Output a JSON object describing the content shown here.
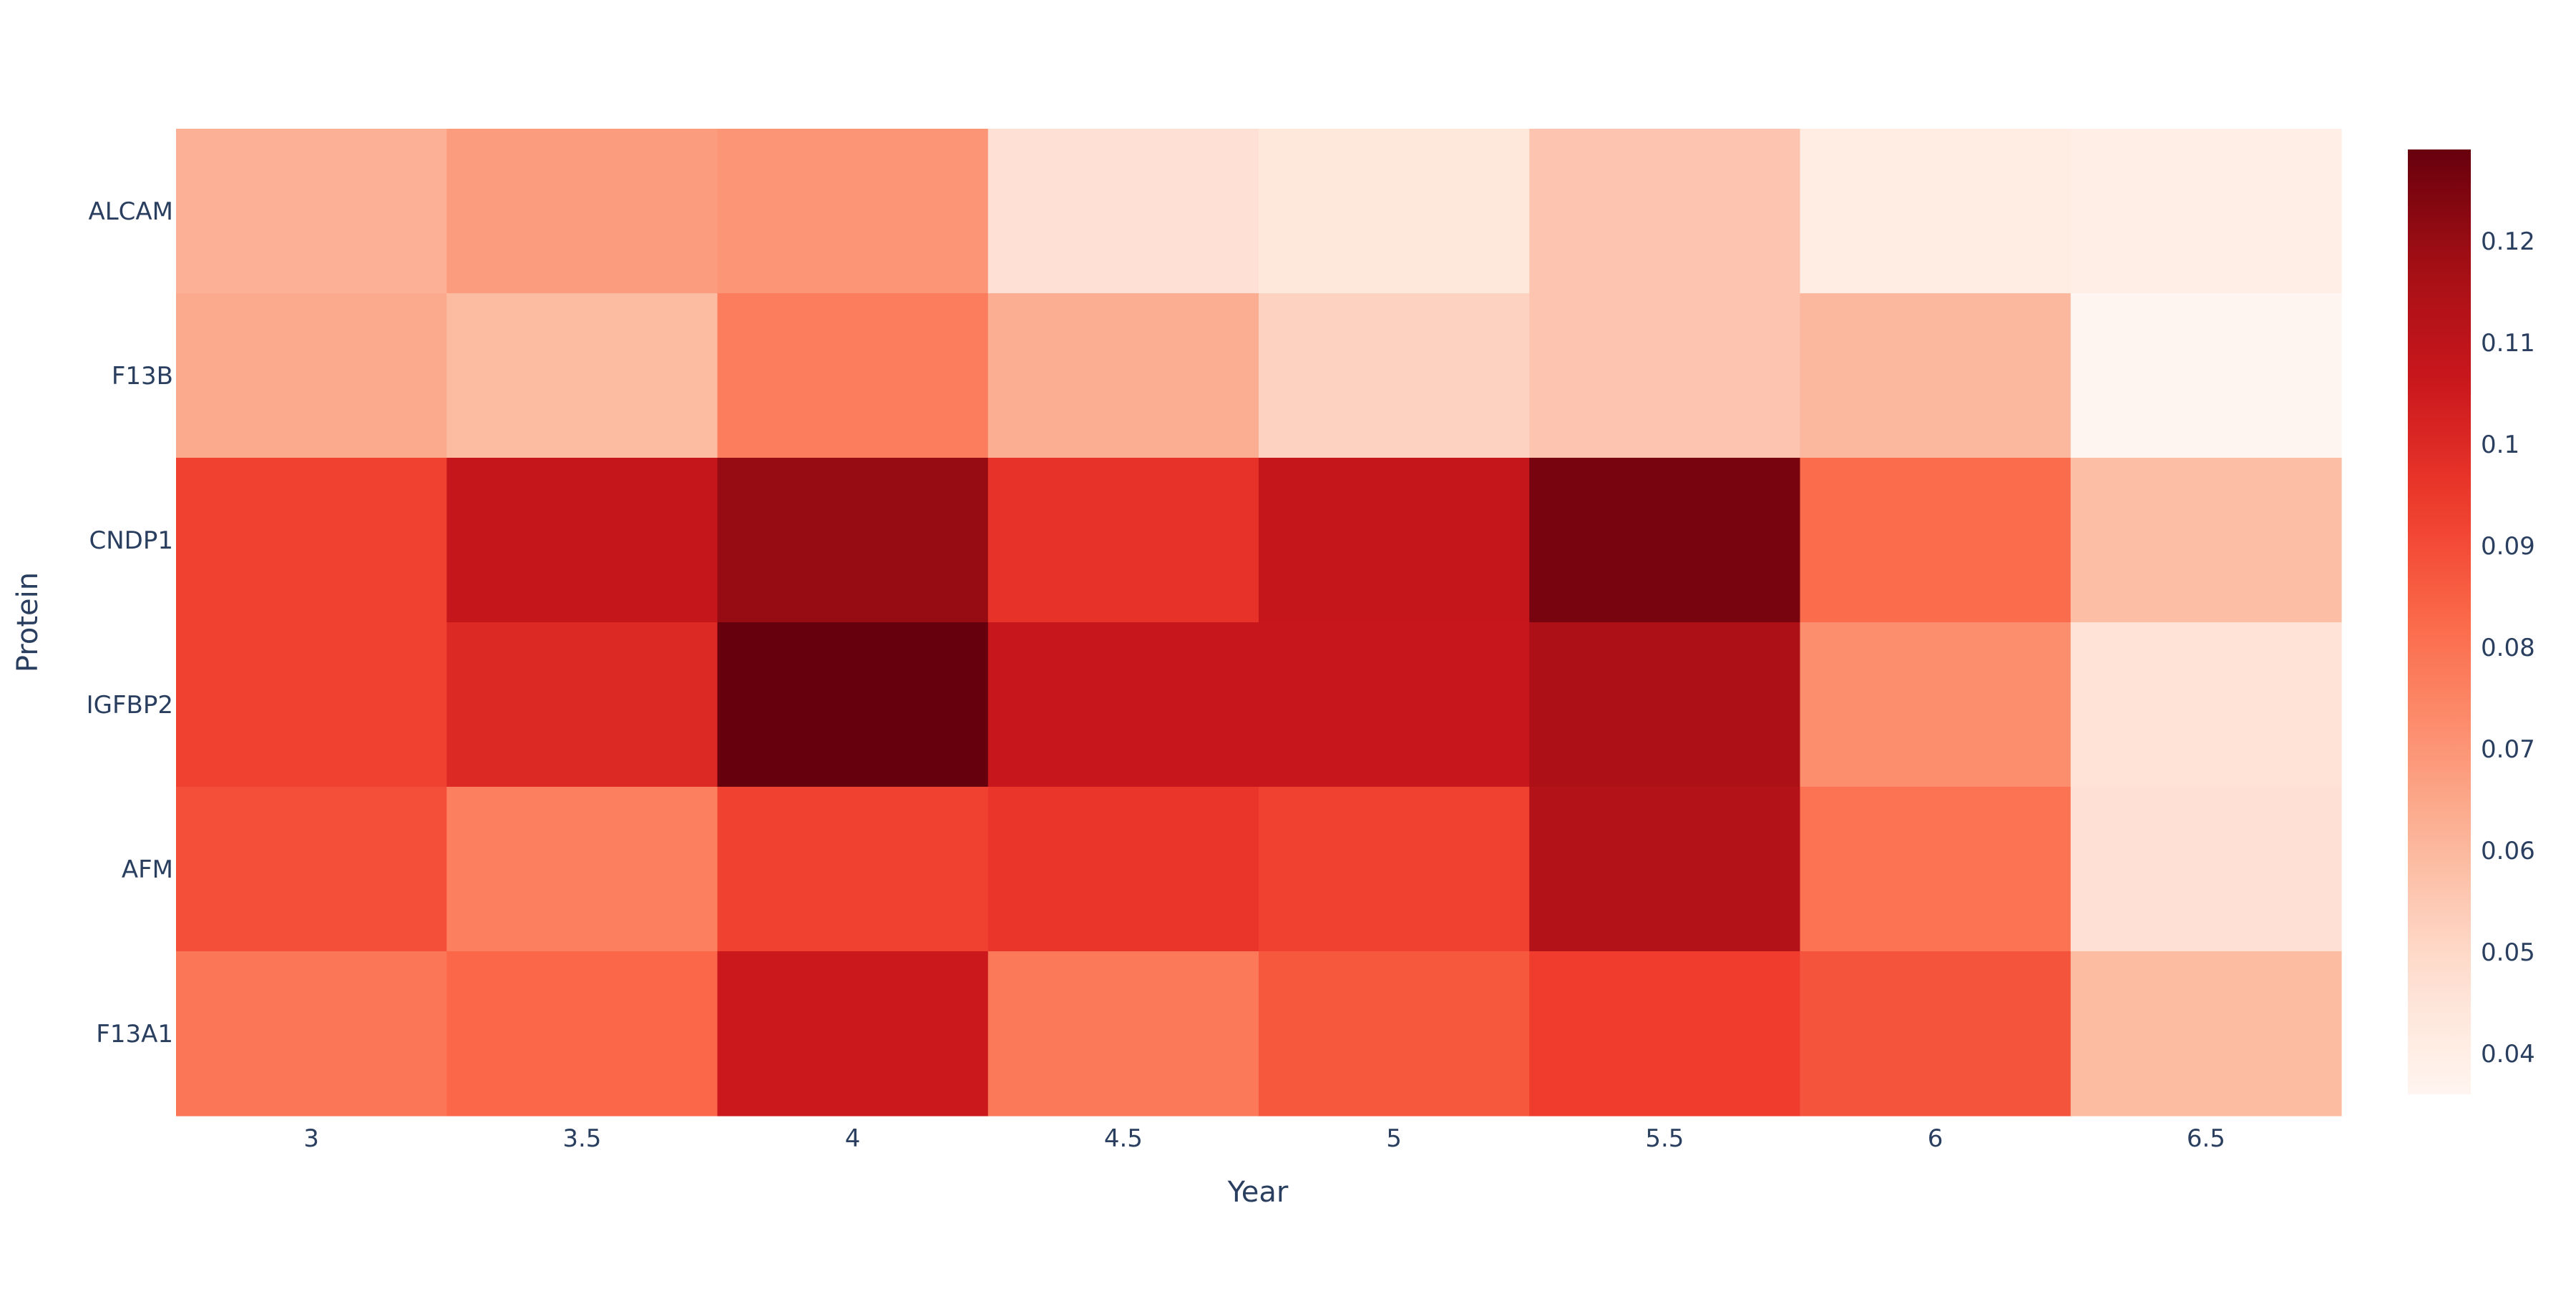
{
  "chart_data": {
    "type": "heatmap",
    "title": "",
    "xlabel": "Year",
    "ylabel": "Protein",
    "x": [
      "3",
      "3.5",
      "4",
      "4.5",
      "5",
      "5.5",
      "6",
      "6.5"
    ],
    "y": [
      "ALCAM",
      "F13B",
      "CNDP1",
      "IGFBP2",
      "AFM",
      "F13A1"
    ],
    "z": [
      [
        0.062,
        0.068,
        0.07,
        0.047,
        0.044,
        0.056,
        0.041,
        0.04
      ],
      [
        0.064,
        0.059,
        0.077,
        0.063,
        0.052,
        0.056,
        0.06,
        0.036
      ],
      [
        0.093,
        0.108,
        0.12,
        0.097,
        0.108,
        0.126,
        0.082,
        0.058
      ],
      [
        0.093,
        0.1,
        0.129,
        0.107,
        0.107,
        0.115,
        0.072,
        0.046
      ],
      [
        0.089,
        0.076,
        0.093,
        0.096,
        0.093,
        0.113,
        0.08,
        0.047
      ],
      [
        0.079,
        0.083,
        0.106,
        0.078,
        0.087,
        0.094,
        0.088,
        0.059
      ]
    ],
    "zrange": [
      0.036,
      0.129
    ],
    "colorscale": "Reds",
    "colorbar_ticks": [
      "0.04",
      "0.05",
      "0.06",
      "0.07",
      "0.08",
      "0.09",
      "0.1",
      "0.11",
      "0.12"
    ],
    "legend": "none",
    "colorbar_placement": "right"
  }
}
